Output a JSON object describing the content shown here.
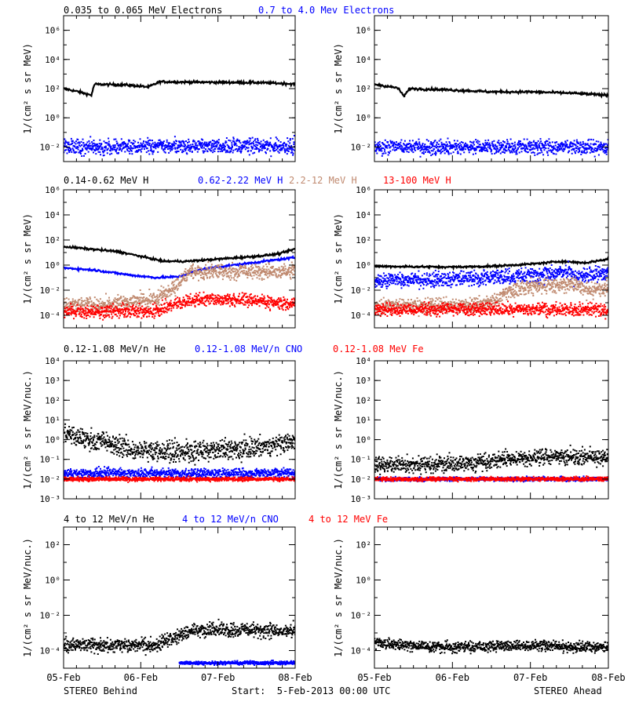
{
  "colors": {
    "black": "#000000",
    "blue": "#0000ff",
    "tan": "#c08a70",
    "red": "#ff0000"
  },
  "footer": {
    "left": "STEREO Behind",
    "center": "Start:  5-Feb-2013 00:00 UTC",
    "right": "STEREO Ahead"
  },
  "x_ticks": [
    "05-Feb",
    "06-Feb",
    "07-Feb",
    "08-Feb"
  ],
  "rows": [
    {
      "ylabel": "1/(cm² s sr MeV)",
      "ylim_log10": [
        -3,
        7
      ],
      "ticks": [
        {
          "v": -2,
          "label": "10⁻²"
        },
        {
          "v": 0,
          "label": "10⁰"
        },
        {
          "v": 2,
          "label": "10²"
        },
        {
          "v": 4,
          "label": "10⁴"
        },
        {
          "v": 6,
          "label": "10⁶"
        }
      ],
      "legend": [
        {
          "text": "0.035 to 0.065 MeV Electrons",
          "color": "black"
        },
        {
          "text": "0.7 to 4.0 Mev Electrons",
          "color": "blue"
        }
      ]
    },
    {
      "ylabel": "1/(cm² s sr MeV)",
      "ylim_log10": [
        -5,
        6
      ],
      "ticks": [
        {
          "v": -4,
          "label": "10⁻⁴"
        },
        {
          "v": -2,
          "label": "10⁻²"
        },
        {
          "v": 0,
          "label": "10⁰"
        },
        {
          "v": 2,
          "label": "10²"
        },
        {
          "v": 4,
          "label": "10⁴"
        },
        {
          "v": 6,
          "label": "10⁶"
        }
      ],
      "legend": [
        {
          "text": "0.14-0.62 MeV H",
          "color": "black"
        },
        {
          "text": "0.62-2.22 MeV H",
          "color": "blue"
        },
        {
          "text": "2.2-12 MeV H",
          "color": "tan"
        },
        {
          "text": "13-100 MeV H",
          "color": "red"
        }
      ]
    },
    {
      "ylabel": "1/(cm² s sr MeV/nuc.)",
      "ylim_log10": [
        -3,
        4
      ],
      "ticks": [
        {
          "v": -3,
          "label": "10⁻³"
        },
        {
          "v": -2,
          "label": "10⁻²"
        },
        {
          "v": -1,
          "label": "10⁻¹"
        },
        {
          "v": 0,
          "label": "10⁰"
        },
        {
          "v": 1,
          "label": "10¹"
        },
        {
          "v": 2,
          "label": "10²"
        },
        {
          "v": 3,
          "label": "10³"
        },
        {
          "v": 4,
          "label": "10⁴"
        }
      ],
      "legend": [
        {
          "text": "0.12-1.08 MeV/n He",
          "color": "black"
        },
        {
          "text": "0.12-1.08 MeV/n CNO",
          "color": "blue"
        },
        {
          "text": "0.12-1.08 MeV Fe",
          "color": "red"
        }
      ]
    },
    {
      "ylabel": "1/(cm² s sr MeV/nuc.)",
      "ylim_log10": [
        -5,
        3
      ],
      "ticks": [
        {
          "v": -4,
          "label": "10⁻⁴"
        },
        {
          "v": -2,
          "label": "10⁻²"
        },
        {
          "v": 0,
          "label": "10⁰"
        },
        {
          "v": 2,
          "label": "10²"
        }
      ],
      "legend": [
        {
          "text": "4 to 12 MeV/n He",
          "color": "black"
        },
        {
          "text": "4 to 12 MeV/n CNO",
          "color": "blue"
        },
        {
          "text": "4 to 12 MeV Fe",
          "color": "red"
        }
      ]
    }
  ],
  "chart_data": [
    {
      "type": "scatter",
      "panel": "electrons-behind",
      "yscale": "log",
      "x_unit": "days since 05-Feb 2013 00:00 UTC",
      "xlim": [
        0,
        3
      ],
      "ylim": [
        0.001,
        10000000
      ],
      "series": [
        {
          "name": "0.035 to 0.065 MeV Electrons",
          "color": "black",
          "style": "line",
          "points": [
            [
              0,
              100
            ],
            [
              0.2,
              60
            ],
            [
              0.36,
              35
            ],
            [
              0.4,
              200
            ],
            [
              0.8,
              180
            ],
            [
              1.1,
              130
            ],
            [
              1.25,
              300
            ],
            [
              1.6,
              280
            ],
            [
              2.0,
              270
            ],
            [
              2.5,
              260
            ],
            [
              2.9,
              220
            ],
            [
              3,
              200
            ]
          ]
        },
        {
          "name": "0.7 to 4.0 Mev Electrons",
          "color": "blue",
          "style": "band",
          "points": [
            [
              0,
              0.01
            ],
            [
              1,
              0.01
            ],
            [
              2,
              0.012
            ],
            [
              3,
              0.011
            ]
          ],
          "spread_log10": 0.25
        }
      ]
    },
    {
      "type": "scatter",
      "panel": "electrons-ahead",
      "yscale": "log",
      "x_unit": "days since 05-Feb 2013 00:00 UTC",
      "xlim": [
        0,
        3
      ],
      "ylim": [
        0.001,
        10000000
      ],
      "series": [
        {
          "name": "0.035 to 0.065 MeV Electrons",
          "color": "black",
          "style": "line",
          "points": [
            [
              0,
              200
            ],
            [
              0.3,
              110
            ],
            [
              0.38,
              30
            ],
            [
              0.45,
              100
            ],
            [
              1.0,
              80
            ],
            [
              1.5,
              60
            ],
            [
              2.0,
              60
            ],
            [
              2.5,
              50
            ],
            [
              3,
              35
            ]
          ]
        },
        {
          "name": "0.7 to 4.0 Mev Electrons",
          "color": "blue",
          "style": "band",
          "points": [
            [
              0,
              0.01
            ],
            [
              1.5,
              0.01
            ],
            [
              3,
              0.01
            ]
          ],
          "spread_log10": 0.25
        }
      ]
    },
    {
      "type": "scatter",
      "panel": "protons-behind",
      "yscale": "log",
      "x_unit": "days since 05-Feb 2013 00:00 UTC",
      "xlim": [
        0,
        3
      ],
      "ylim": [
        1e-05,
        1000000
      ],
      "series": [
        {
          "name": "0.14-0.62 MeV H",
          "color": "black",
          "style": "line",
          "points": [
            [
              0,
              30
            ],
            [
              0.3,
              20
            ],
            [
              0.7,
              12
            ],
            [
              1.0,
              5
            ],
            [
              1.3,
              2
            ],
            [
              1.6,
              2
            ],
            [
              2.0,
              3
            ],
            [
              2.5,
              5
            ],
            [
              2.8,
              8
            ],
            [
              3,
              20
            ]
          ]
        },
        {
          "name": "0.62-2.22 MeV H",
          "color": "blue",
          "style": "line",
          "points": [
            [
              0,
              0.6
            ],
            [
              0.4,
              0.4
            ],
            [
              0.9,
              0.15
            ],
            [
              1.2,
              0.1
            ],
            [
              1.5,
              0.12
            ],
            [
              1.8,
              0.5
            ],
            [
              2.2,
              1
            ],
            [
              2.6,
              2
            ],
            [
              3,
              4
            ]
          ]
        },
        {
          "name": "2.2-12 MeV H",
          "color": "tan",
          "style": "band",
          "points": [
            [
              0,
              0.0007
            ],
            [
              0.5,
              0.0007
            ],
            [
              0.9,
              0.0012
            ],
            [
              1.2,
              0.002
            ],
            [
              1.45,
              0.02
            ],
            [
              1.65,
              0.3
            ],
            [
              2.0,
              0.35
            ],
            [
              2.5,
              0.3
            ],
            [
              3,
              0.3
            ]
          ],
          "spread_log10": 0.3
        },
        {
          "name": "13-100 MeV H",
          "color": "red",
          "style": "band",
          "points": [
            [
              0,
              0.0002
            ],
            [
              1.2,
              0.0002
            ],
            [
              1.5,
              0.001
            ],
            [
              1.8,
              0.002
            ],
            [
              2.2,
              0.002
            ],
            [
              2.6,
              0.0012
            ],
            [
              3,
              0.0008
            ]
          ],
          "spread_log10": 0.25
        }
      ]
    },
    {
      "type": "scatter",
      "panel": "protons-ahead",
      "yscale": "log",
      "x_unit": "days since 05-Feb 2013 00:00 UTC",
      "xlim": [
        0,
        3
      ],
      "ylim": [
        1e-05,
        1000000
      ],
      "series": [
        {
          "name": "0.14-0.62 MeV H",
          "color": "black",
          "style": "line",
          "points": [
            [
              0,
              0.8
            ],
            [
              1,
              0.7
            ],
            [
              1.5,
              0.8
            ],
            [
              2.0,
              1.2
            ],
            [
              2.4,
              2
            ],
            [
              2.7,
              1.5
            ],
            [
              3,
              3
            ]
          ]
        },
        {
          "name": "0.62-2.22 MeV H",
          "color": "blue",
          "style": "band",
          "points": [
            [
              0,
              0.06
            ],
            [
              1,
              0.08
            ],
            [
              2,
              0.15
            ],
            [
              2.5,
              0.3
            ],
            [
              2.55,
              0.12
            ],
            [
              3,
              0.25
            ]
          ],
          "spread_log10": 0.3
        },
        {
          "name": "2.2-12 MeV H",
          "color": "tan",
          "style": "band",
          "points": [
            [
              0,
              0.0005
            ],
            [
              1.2,
              0.0006
            ],
            [
              1.5,
              0.001
            ],
            [
              1.7,
              0.008
            ],
            [
              2.2,
              0.025
            ],
            [
              2.6,
              0.03
            ],
            [
              2.7,
              0.01
            ],
            [
              3,
              0.015
            ]
          ],
          "spread_log10": 0.3
        },
        {
          "name": "13-100 MeV H",
          "color": "red",
          "style": "band",
          "points": [
            [
              0,
              0.0003
            ],
            [
              1.5,
              0.0003
            ],
            [
              3,
              0.0003
            ]
          ],
          "spread_log10": 0.25
        }
      ]
    },
    {
      "type": "scatter",
      "panel": "lowE-heavy-ions-behind",
      "yscale": "log",
      "x_unit": "days since 05-Feb 2013 00:00 UTC",
      "xlim": [
        0,
        3
      ],
      "ylim": [
        0.001,
        10000
      ],
      "series": [
        {
          "name": "0.12-1.08 MeV/n He",
          "color": "black",
          "style": "band",
          "points": [
            [
              0,
              1.8
            ],
            [
              0.5,
              0.8
            ],
            [
              0.9,
              0.3
            ],
            [
              1.3,
              0.25
            ],
            [
              1.8,
              0.25
            ],
            [
              2.3,
              0.35
            ],
            [
              2.7,
              0.5
            ],
            [
              3,
              0.9
            ]
          ],
          "spread_log10": 0.25
        },
        {
          "name": "0.12-1.08 MeV/n CNO",
          "color": "blue",
          "style": "band",
          "points": [
            [
              0,
              0.02
            ],
            [
              3,
              0.02
            ]
          ],
          "spread_log10": 0.12
        },
        {
          "name": "0.12-1.08 MeV Fe",
          "color": "red",
          "style": "band",
          "points": [
            [
              0,
              0.01
            ],
            [
              3,
              0.01
            ]
          ],
          "spread_log10": 0.05
        }
      ]
    },
    {
      "type": "scatter",
      "panel": "lowE-heavy-ions-ahead",
      "yscale": "log",
      "x_unit": "days since 05-Feb 2013 00:00 UTC",
      "xlim": [
        0,
        3
      ],
      "ylim": [
        0.001,
        10000
      ],
      "series": [
        {
          "name": "0.12-1.08 MeV/n He",
          "color": "black",
          "style": "band",
          "points": [
            [
              0,
              0.05
            ],
            [
              1.2,
              0.06
            ],
            [
              1.8,
              0.12
            ],
            [
              2.4,
              0.15
            ],
            [
              3,
              0.12
            ]
          ],
          "spread_log10": 0.2
        },
        {
          "name": "0.12-1.08 MeV/n CNO",
          "color": "blue",
          "style": "band",
          "points": [
            [
              0,
              0.01
            ],
            [
              3,
              0.01
            ]
          ],
          "spread_log10": 0.05
        },
        {
          "name": "0.12-1.08 MeV Fe",
          "color": "red",
          "style": "band",
          "points": [
            [
              0,
              0.01
            ],
            [
              3,
              0.01
            ]
          ],
          "spread_log10": 0.05
        }
      ]
    },
    {
      "type": "scatter",
      "panel": "highE-heavy-ions-behind",
      "yscale": "log",
      "x_unit": "days since 05-Feb 2013 00:00 UTC",
      "xlim": [
        0,
        3
      ],
      "ylim": [
        1e-05,
        1000
      ],
      "series": [
        {
          "name": "4 to 12 MeV/n He",
          "color": "black",
          "style": "band",
          "points": [
            [
              0,
              0.0002
            ],
            [
              1.2,
              0.0002
            ],
            [
              1.45,
              0.0006
            ],
            [
              1.7,
              0.0015
            ],
            [
              2.3,
              0.0015
            ],
            [
              3,
              0.0012
            ]
          ],
          "spread_log10": 0.2
        },
        {
          "name": "4 to 12 MeV/n CNO",
          "color": "blue",
          "style": "band",
          "points": [
            [
              1.5,
              2e-05
            ],
            [
              3,
              2e-05
            ]
          ],
          "spread_log10": 0.05
        },
        {
          "name": "4 to 12 MeV Fe",
          "color": "red",
          "style": "none",
          "points": []
        }
      ]
    },
    {
      "type": "scatter",
      "panel": "highE-heavy-ions-ahead",
      "yscale": "log",
      "x_unit": "days since 05-Feb 2013 00:00 UTC",
      "xlim": [
        0,
        3
      ],
      "ylim": [
        1e-05,
        1000
      ],
      "series": [
        {
          "name": "4 to 12 MeV/n He",
          "color": "black",
          "style": "band",
          "points": [
            [
              0,
              0.0003
            ],
            [
              0.3,
              0.0002
            ],
            [
              1,
              0.00015
            ],
            [
              2,
              0.0002
            ],
            [
              3,
              0.00015
            ]
          ],
          "spread_log10": 0.15
        },
        {
          "name": "4 to 12 MeV/n CNO",
          "color": "blue",
          "style": "none",
          "points": []
        },
        {
          "name": "4 to 12 MeV Fe",
          "color": "red",
          "style": "none",
          "points": []
        }
      ]
    }
  ]
}
